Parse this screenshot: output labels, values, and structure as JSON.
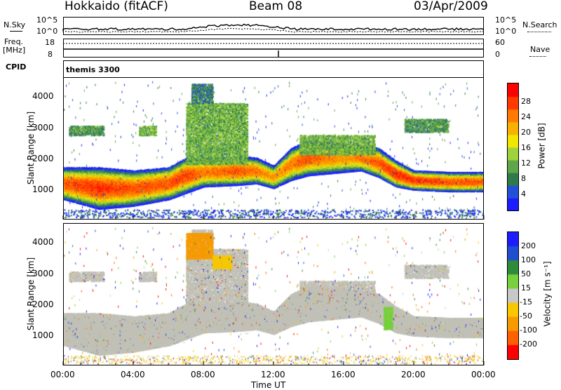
{
  "header": {
    "station": "Hokkaido (fitACF)",
    "beam": "Beam 08",
    "date": "03/Apr/2009"
  },
  "noise_panel": {
    "left_label": "N.Sky",
    "right_label": "N.Search",
    "left_ticks": [
      "10^5",
      "10^0"
    ],
    "right_ticks": [
      "10^5",
      "10^0"
    ]
  },
  "freq_panel": {
    "left_label_line1": "Freq.",
    "left_label_line2": "[MHz]",
    "right_label": "Nave",
    "left_ticks": [
      "18",
      "8"
    ],
    "right_ticks": [
      "60",
      "0"
    ]
  },
  "cpid": {
    "label": "CPID",
    "value": "themis 3300"
  },
  "colors": {
    "power_scale": [
      "#1c1cff",
      "#2450d8",
      "#2d7a4a",
      "#5fa54a",
      "#9fd23c",
      "#f0e600",
      "#f7b100",
      "#ff7a00",
      "#ff3a00",
      "#ff0000"
    ],
    "velocity_scale": [
      "#1c1cff",
      "#1f4fd0",
      "#2f8b3a",
      "#78d03c",
      "#c8c8c8",
      "#f7c800",
      "#f79a00",
      "#ff6000",
      "#ff0000"
    ],
    "ground_scatter": "#c0c0b8"
  },
  "chart_data": [
    {
      "type": "heatmap",
      "name": "power",
      "ylabel": "Slant Range [km]",
      "yticks": [
        "1000",
        "2000",
        "3000",
        "4000"
      ],
      "ylim": [
        200,
        4600
      ],
      "xlim": [
        0,
        24
      ],
      "colorbar": {
        "label": "Power [dB]",
        "ticks": [
          "4",
          "8",
          "12",
          "16",
          "20",
          "24",
          "28"
        ],
        "range": [
          0,
          32
        ]
      },
      "bands": [
        {
          "times": [
            0,
            2,
            4,
            6,
            7,
            8,
            10,
            11,
            12,
            13,
            14,
            16,
            17,
            18,
            19,
            20,
            22,
            24
          ],
          "center": [
            1300,
            1150,
            1150,
            1300,
            1550,
            1650,
            1700,
            1700,
            1500,
            1900,
            2100,
            2100,
            2100,
            1950,
            1600,
            1400,
            1350,
            1350
          ],
          "width": [
            500,
            650,
            550,
            500,
            550,
            450,
            450,
            400,
            350,
            500,
            550,
            450,
            400,
            450,
            400,
            300,
            300,
            300
          ],
          "peak_db": [
            26,
            28,
            26,
            26,
            27,
            24,
            26,
            24,
            22,
            24,
            26,
            22,
            24,
            26,
            28,
            28,
            26,
            26
          ]
        }
      ],
      "patches": [
        {
          "t0": 7.0,
          "t1": 10.5,
          "r0": 1900,
          "r1": 3800,
          "power_db": 12
        },
        {
          "t0": 7.3,
          "t1": 8.5,
          "r0": 3800,
          "r1": 4400,
          "power_db": 8
        },
        {
          "t0": 13.5,
          "t1": 17.8,
          "r0": 2200,
          "r1": 2800,
          "power_db": 12
        },
        {
          "t0": 0.3,
          "t1": 2.3,
          "r0": 2800,
          "r1": 3100,
          "power_db": 10
        },
        {
          "t0": 4.3,
          "t1": 5.3,
          "r0": 2800,
          "r1": 3100,
          "power_db": 12
        },
        {
          "t0": 19.5,
          "t1": 22.0,
          "r0": 2900,
          "r1": 3300,
          "power_db": 10
        }
      ]
    },
    {
      "type": "heatmap",
      "name": "velocity",
      "ylabel": "Slant Range [km]",
      "xlabel": "Time UT",
      "xticks": [
        "00:00",
        "04:00",
        "08:00",
        "12:00",
        "16:00",
        "20:00",
        "00:00"
      ],
      "yticks": [
        "1000",
        "2000",
        "3000",
        "4000"
      ],
      "ylim": [
        200,
        4600
      ],
      "xlim": [
        0,
        24
      ],
      "colorbar": {
        "label": "Velocity [m s⁻¹]",
        "ticks": [
          "200",
          "100",
          "50",
          "15",
          "-15",
          "-50",
          "-100",
          "-200"
        ],
        "range": [
          -250,
          250
        ]
      },
      "patches": [
        {
          "t0": 7.0,
          "t1": 8.5,
          "r0": 3500,
          "r1": 4300,
          "velocity": -80
        },
        {
          "t0": 8.5,
          "t1": 9.6,
          "r0": 3200,
          "r1": 3600,
          "velocity": -60
        },
        {
          "t0": 18.3,
          "t1": 18.8,
          "r0": 1300,
          "r1": 2000,
          "velocity": 50
        }
      ]
    }
  ]
}
